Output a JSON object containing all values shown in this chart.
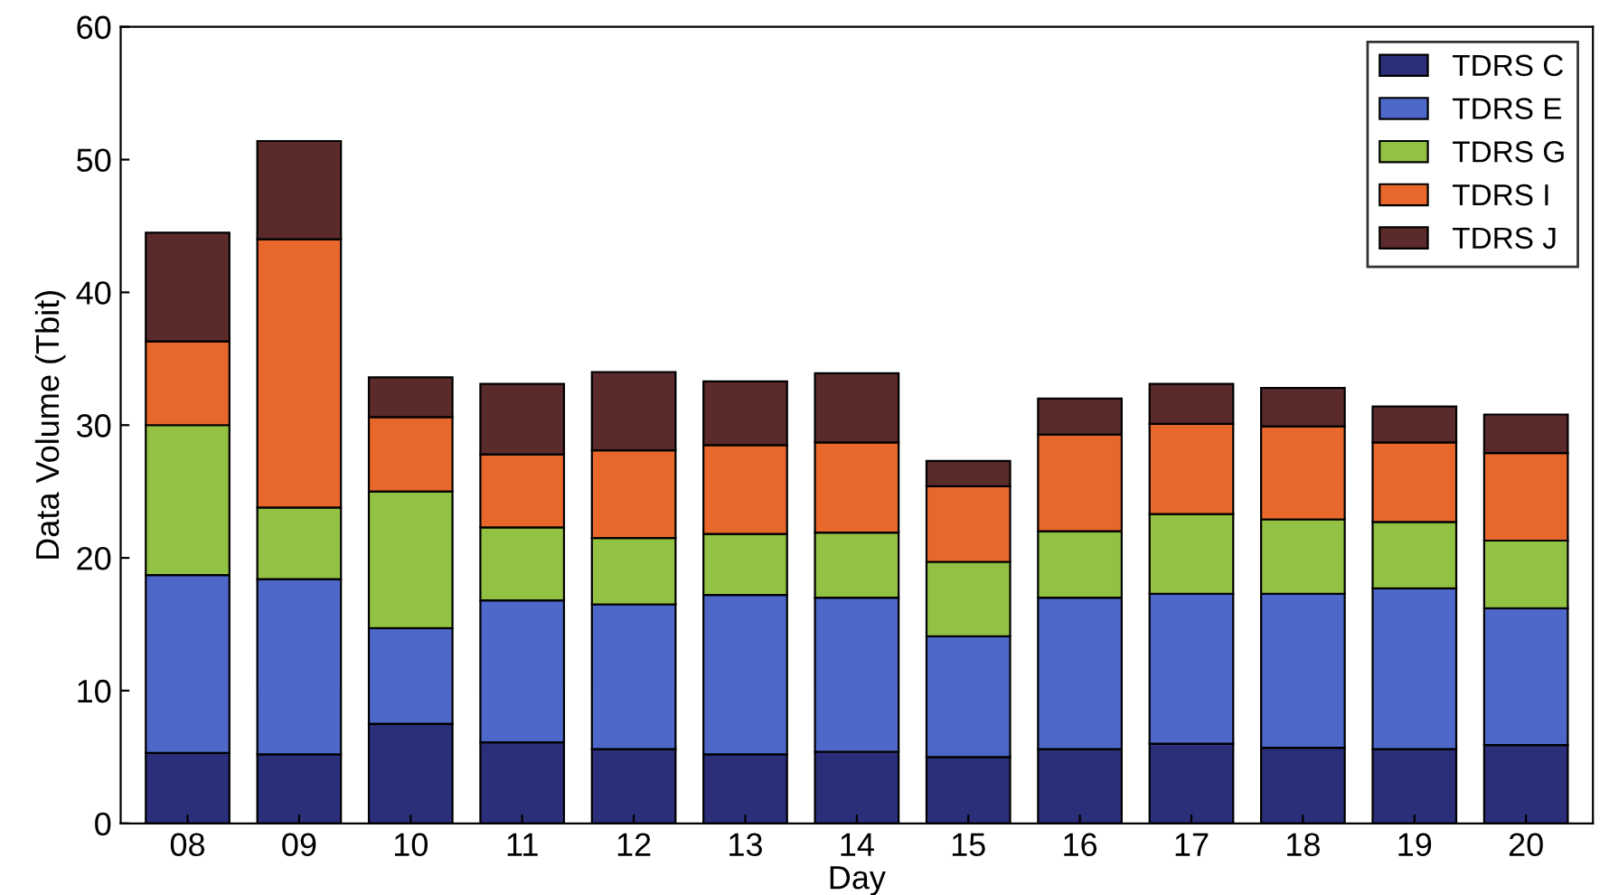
{
  "chart_data": {
    "type": "bar",
    "stacked": true,
    "xlabel": "Day",
    "ylabel": "Data Volume (Tbit)",
    "categories": [
      "08",
      "09",
      "10",
      "11",
      "12",
      "13",
      "14",
      "15",
      "16",
      "17",
      "18",
      "19",
      "20"
    ],
    "series": [
      {
        "name": "TDRS C",
        "color": "#2b2e78",
        "values": [
          5.3,
          5.2,
          7.5,
          6.1,
          5.6,
          5.2,
          5.4,
          5.0,
          5.6,
          6.0,
          5.7,
          5.6,
          5.9
        ]
      },
      {
        "name": "TDRS E",
        "color": "#4d68c8",
        "values": [
          13.4,
          13.2,
          7.2,
          10.7,
          10.9,
          12.0,
          11.6,
          9.1,
          11.4,
          11.3,
          11.6,
          12.1,
          10.3
        ]
      },
      {
        "name": "TDRS G",
        "color": "#93c143",
        "values": [
          11.3,
          5.4,
          10.3,
          5.5,
          5.0,
          4.6,
          4.9,
          5.6,
          5.0,
          6.0,
          5.6,
          5.0,
          5.1
        ]
      },
      {
        "name": "TDRS I",
        "color": "#e8682b",
        "values": [
          6.3,
          20.2,
          5.6,
          5.5,
          6.6,
          6.7,
          6.8,
          5.7,
          7.3,
          6.8,
          7.0,
          6.0,
          6.6
        ]
      },
      {
        "name": "TDRS J",
        "color": "#5b2a2b",
        "values": [
          8.2,
          7.4,
          3.0,
          5.3,
          5.9,
          4.8,
          5.2,
          1.9,
          2.7,
          3.0,
          2.9,
          2.7,
          2.9
        ]
      }
    ],
    "ylim": [
      0,
      60
    ],
    "yticks": [
      0,
      10,
      20,
      30,
      40,
      50,
      60
    ],
    "grid": false,
    "legend": "top right"
  }
}
